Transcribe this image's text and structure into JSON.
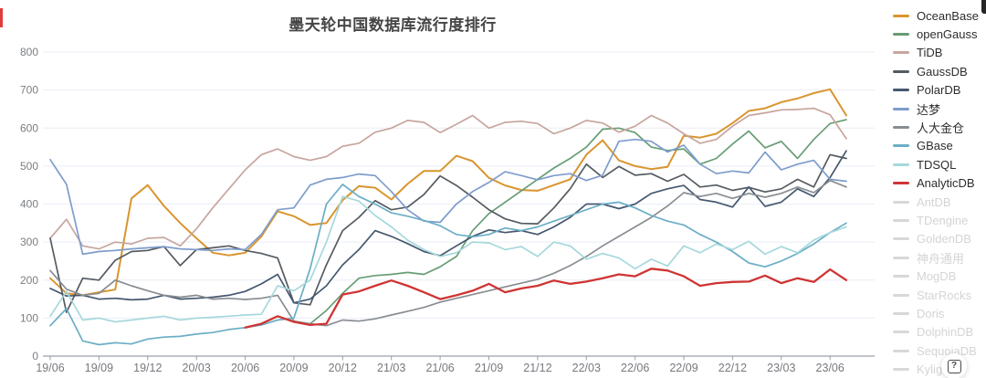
{
  "page": {
    "title": "墨天轮中国数据库流行度排行",
    "help_label": "?"
  },
  "axes": {
    "y_ticks": [
      800,
      700,
      600,
      500,
      400,
      300,
      200,
      100,
      0
    ],
    "x_tick_labels": [
      "19/06",
      "19/09",
      "19/12",
      "20/03",
      "20/06",
      "20/09",
      "20/12",
      "21/03",
      "21/06",
      "21/09",
      "21/12",
      "22/03",
      "22/06",
      "22/09",
      "22/12",
      "23/03",
      "23/06"
    ]
  },
  "legend": [
    {
      "label": "OceanBase",
      "color": "#d9952f",
      "active": true
    },
    {
      "label": "openGauss",
      "color": "#679d75",
      "active": true
    },
    {
      "label": "TiDB",
      "color": "#c7a59e",
      "active": true
    },
    {
      "label": "GaussDB",
      "color": "#555b61",
      "active": true
    },
    {
      "label": "PolarDB",
      "color": "#45586f",
      "active": true
    },
    {
      "label": "达梦",
      "color": "#7e9ccc",
      "active": true
    },
    {
      "label": "人大金仓",
      "color": "#898d92",
      "active": true
    },
    {
      "label": "GBase",
      "color": "#6aaec5",
      "active": true
    },
    {
      "label": "TDSQL",
      "color": "#a6d8dc",
      "active": true
    },
    {
      "label": "AnalyticDB",
      "color": "#cf3433",
      "active": true
    },
    {
      "label": "AntDB",
      "color": "#d8d8d8",
      "active": false
    },
    {
      "label": "TDengine",
      "color": "#d8d8d8",
      "active": false
    },
    {
      "label": "GoldenDB",
      "color": "#d8d8d8",
      "active": false
    },
    {
      "label": "神舟通用",
      "color": "#d8d8d8",
      "active": false
    },
    {
      "label": "MogDB",
      "color": "#d8d8d8",
      "active": false
    },
    {
      "label": "StarRocks",
      "color": "#d8d8d8",
      "active": false
    },
    {
      "label": "Doris",
      "color": "#d8d8d8",
      "active": false
    },
    {
      "label": "DolphinDB",
      "color": "#d8d8d8",
      "active": false
    },
    {
      "label": "SequoiaDB",
      "color": "#d8d8d8",
      "active": false
    },
    {
      "label": "Kylig",
      "color": "#d8d8d8",
      "active": false
    }
  ],
  "chart_data": {
    "type": "line",
    "title": "墨天轮中国数据库流行度排行",
    "xlabel": "",
    "ylabel": "",
    "ylim": [
      0,
      800
    ],
    "grid": true,
    "legend_position": "right",
    "x": [
      "19/06",
      "19/07",
      "19/08",
      "19/09",
      "19/10",
      "19/11",
      "19/12",
      "20/01",
      "20/02",
      "20/03",
      "20/04",
      "20/05",
      "20/06",
      "20/07",
      "20/08",
      "20/09",
      "20/10",
      "20/11",
      "20/12",
      "21/01",
      "21/02",
      "21/03",
      "21/04",
      "21/05",
      "21/06",
      "21/07",
      "21/08",
      "21/09",
      "21/10",
      "21/11",
      "21/12",
      "22/01",
      "22/02",
      "22/03",
      "22/04",
      "22/05",
      "22/06",
      "22/07",
      "22/08",
      "22/09",
      "22/10",
      "22/11",
      "22/12",
      "23/01",
      "23/02",
      "23/03",
      "23/04",
      "23/05",
      "23/06",
      "23/07"
    ],
    "series": [
      {
        "name": "OceanBase",
        "color": "#d9952f",
        "values": [
          205,
          165,
          160,
          168,
          175,
          415,
          450,
          395,
          350,
          310,
          272,
          265,
          272,
          315,
          381,
          368,
          345,
          350,
          410,
          447,
          443,
          412,
          453,
          487,
          487,
          527,
          513,
          469,
          449,
          437,
          435,
          450,
          465,
          530,
          568,
          515,
          500,
          492,
          498,
          580,
          575,
          585,
          613,
          645,
          652,
          668,
          678,
          692,
          702,
          633
        ]
      },
      {
        "name": "openGauss",
        "color": "#679d75",
        "values": [
          null,
          null,
          null,
          null,
          null,
          null,
          null,
          null,
          null,
          null,
          null,
          null,
          null,
          null,
          null,
          null,
          85,
          120,
          165,
          205,
          212,
          215,
          220,
          215,
          235,
          262,
          330,
          375,
          405,
          435,
          465,
          495,
          520,
          550,
          597,
          600,
          588,
          550,
          541,
          545,
          505,
          520,
          558,
          592,
          548,
          565,
          520,
          570,
          612,
          622
        ]
      },
      {
        "name": "TiDB",
        "color": "#c7a59e",
        "values": [
          310,
          360,
          290,
          282,
          300,
          295,
          310,
          312,
          290,
          335,
          390,
          440,
          490,
          530,
          545,
          525,
          515,
          525,
          552,
          560,
          589,
          600,
          620,
          615,
          588,
          610,
          633,
          600,
          615,
          618,
          612,
          585,
          600,
          620,
          613,
          589,
          605,
          633,
          613,
          585,
          560,
          570,
          605,
          633,
          640,
          648,
          649,
          652,
          635,
          572
        ]
      },
      {
        "name": "GaussDB",
        "color": "#555b61",
        "values": [
          310,
          115,
          205,
          200,
          252,
          275,
          278,
          288,
          238,
          280,
          285,
          290,
          278,
          270,
          258,
          140,
          135,
          240,
          330,
          365,
          409,
          385,
          392,
          425,
          474,
          449,
          418,
          385,
          361,
          349,
          348,
          390,
          440,
          505,
          470,
          499,
          476,
          480,
          460,
          478,
          445,
          450,
          436,
          444,
          432,
          440,
          465,
          445,
          530,
          520
        ]
      },
      {
        "name": "PolarDB",
        "color": "#45586f",
        "values": [
          178,
          158,
          160,
          150,
          152,
          148,
          150,
          160,
          150,
          152,
          155,
          160,
          170,
          190,
          215,
          140,
          150,
          185,
          240,
          280,
          330,
          315,
          296,
          275,
          264,
          290,
          315,
          332,
          325,
          330,
          320,
          340,
          365,
          400,
          400,
          388,
          400,
          428,
          440,
          449,
          412,
          405,
          392,
          445,
          394,
          405,
          440,
          420,
          470,
          540
        ]
      },
      {
        "name": "达梦",
        "color": "#7e9ccc",
        "values": [
          517,
          452,
          268,
          275,
          278,
          282,
          285,
          288,
          282,
          280,
          278,
          282,
          280,
          320,
          385,
          390,
          450,
          465,
          470,
          479,
          475,
          433,
          385,
          355,
          352,
          400,
          433,
          457,
          485,
          475,
          464,
          475,
          480,
          462,
          476,
          565,
          570,
          565,
          537,
          555,
          505,
          480,
          487,
          482,
          537,
          490,
          505,
          515,
          465,
          460
        ]
      },
      {
        "name": "人大金仓",
        "color": "#898d92",
        "values": [
          225,
          176,
          160,
          165,
          200,
          185,
          172,
          160,
          155,
          160,
          150,
          152,
          149,
          152,
          160,
          92,
          85,
          80,
          95,
          92,
          98,
          108,
          118,
          128,
          142,
          152,
          162,
          172,
          182,
          192,
          202,
          218,
          238,
          262,
          290,
          315,
          340,
          365,
          395,
          430,
          420,
          428,
          415,
          428,
          418,
          428,
          445,
          430,
          462,
          445
        ]
      },
      {
        "name": "GBase",
        "color": "#6aaec5",
        "values": [
          80,
          125,
          40,
          30,
          35,
          32,
          45,
          50,
          52,
          58,
          62,
          70,
          75,
          82,
          95,
          100,
          230,
          400,
          452,
          420,
          400,
          377,
          368,
          357,
          343,
          320,
          314,
          320,
          337,
          330,
          340,
          355,
          370,
          385,
          400,
          405,
          390,
          370,
          355,
          345,
          320,
          300,
          275,
          245,
          235,
          250,
          270,
          295,
          325,
          350
        ]
      },
      {
        "name": "TDSQL",
        "color": "#a6d8dc",
        "values": [
          105,
          170,
          95,
          100,
          90,
          95,
          100,
          105,
          95,
          100,
          102,
          105,
          108,
          110,
          185,
          172,
          200,
          300,
          420,
          408,
          370,
          340,
          305,
          280,
          262,
          272,
          300,
          298,
          280,
          288,
          262,
          300,
          290,
          255,
          270,
          258,
          230,
          255,
          237,
          290,
          272,
          295,
          280,
          302,
          268,
          288,
          272,
          305,
          325,
          340
        ]
      },
      {
        "name": "AnalyticDB",
        "color": "#cf3433",
        "values": [
          null,
          null,
          null,
          null,
          null,
          null,
          null,
          null,
          null,
          null,
          null,
          null,
          75,
          85,
          105,
          90,
          82,
          85,
          162,
          170,
          185,
          199,
          185,
          168,
          150,
          160,
          172,
          190,
          168,
          178,
          185,
          199,
          190,
          196,
          205,
          215,
          210,
          230,
          225,
          210,
          185,
          192,
          195,
          196,
          212,
          192,
          205,
          195,
          228,
          200
        ]
      }
    ]
  }
}
